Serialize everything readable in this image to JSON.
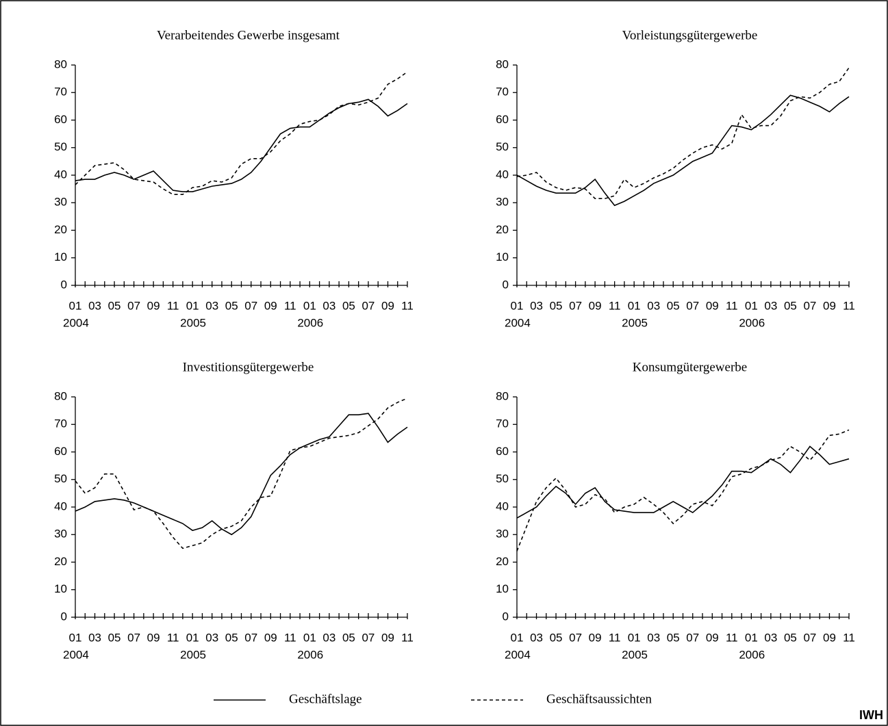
{
  "chart_data": [
    {
      "type": "line",
      "title": "Verarbeitendes Gewerbe insgesamt",
      "categories": [
        "01",
        null,
        "03",
        null,
        "05",
        null,
        "07",
        null,
        "09",
        null,
        "11",
        null,
        "01",
        null,
        "03",
        null,
        "05",
        null,
        "07",
        null,
        "09",
        null,
        "11",
        null,
        "01",
        null,
        "03",
        null,
        "05",
        null,
        "07",
        null,
        "09",
        null,
        "11"
      ],
      "years": [
        "2004",
        null,
        null,
        null,
        null,
        null,
        null,
        null,
        null,
        null,
        null,
        null,
        "2005",
        null,
        null,
        null,
        null,
        null,
        null,
        null,
        null,
        null,
        null,
        null,
        "2006",
        null,
        null,
        null,
        null,
        null,
        null,
        null,
        null,
        null,
        null
      ],
      "ylim": [
        0,
        80
      ],
      "yticks": [
        0,
        10,
        20,
        30,
        40,
        50,
        60,
        70,
        80
      ],
      "series": [
        {
          "name": "Geschäftslage",
          "color": "#000000",
          "style": "solid",
          "values": [
            38,
            38.5,
            38.5,
            40,
            41,
            40,
            38.5,
            40,
            41.5,
            38,
            34.5,
            34,
            34,
            35,
            36,
            36.5,
            37,
            38.5,
            41,
            45,
            50,
            55,
            57,
            57.5,
            57.5,
            60,
            62.5,
            64.5,
            66,
            66.5,
            67.5,
            65,
            61.5,
            63.5,
            66
          ]
        },
        {
          "name": "Geschäftsaussichten",
          "color": "#000000",
          "style": "dashed",
          "values": [
            36.5,
            40,
            43.5,
            44,
            44.5,
            42,
            38.5,
            38,
            37.5,
            35,
            33,
            33,
            35.5,
            36,
            38,
            37.5,
            39,
            44,
            46,
            46,
            48.5,
            52.5,
            55,
            58.5,
            59.5,
            60,
            62,
            65,
            66,
            65.5,
            66.5,
            68,
            73,
            75,
            77.5
          ]
        }
      ]
    },
    {
      "type": "line",
      "title": "Vorleistungsgütergewerbe",
      "categories": [
        "01",
        null,
        "03",
        null,
        "05",
        null,
        "07",
        null,
        "09",
        null,
        "11",
        null,
        "01",
        null,
        "03",
        null,
        "05",
        null,
        "07",
        null,
        "09",
        null,
        "11",
        null,
        "01",
        null,
        "03",
        null,
        "05",
        null,
        "07",
        null,
        "09",
        null,
        "11"
      ],
      "years": [
        "2004",
        null,
        null,
        null,
        null,
        null,
        null,
        null,
        null,
        null,
        null,
        null,
        "2005",
        null,
        null,
        null,
        null,
        null,
        null,
        null,
        null,
        null,
        null,
        null,
        "2006",
        null,
        null,
        null,
        null,
        null,
        null,
        null,
        null,
        null,
        null
      ],
      "ylim": [
        0,
        80
      ],
      "yticks": [
        0,
        10,
        20,
        30,
        40,
        50,
        60,
        70,
        80
      ],
      "series": [
        {
          "name": "Geschäftslage",
          "color": "#000000",
          "style": "solid",
          "values": [
            40,
            38,
            36,
            34.5,
            33.5,
            33.5,
            33.5,
            35.5,
            38.5,
            33.5,
            29,
            30.5,
            32.5,
            34.5,
            37,
            38.5,
            40,
            42.5,
            45,
            46.5,
            48,
            53,
            58,
            57.5,
            56.5,
            59,
            62,
            65.5,
            69,
            68,
            66.5,
            65,
            63,
            66,
            68.5
          ]
        },
        {
          "name": "Geschäftsaussichten",
          "color": "#000000",
          "style": "dashed",
          "values": [
            39.5,
            40,
            41,
            37.5,
            35.5,
            34.5,
            35.5,
            35,
            31.5,
            31.5,
            32.5,
            38.5,
            35.5,
            37,
            39,
            40.5,
            42.5,
            45.5,
            48,
            50,
            51,
            49.5,
            51.5,
            62,
            57,
            58,
            58,
            61.5,
            67,
            68.5,
            68,
            70,
            73,
            74,
            79
          ]
        }
      ]
    },
    {
      "type": "line",
      "title": "Investitionsgütergewerbe",
      "categories": [
        "01",
        null,
        "03",
        null,
        "05",
        null,
        "07",
        null,
        "09",
        null,
        "11",
        null,
        "01",
        null,
        "03",
        null,
        "05",
        null,
        "07",
        null,
        "09",
        null,
        "11",
        null,
        "01",
        null,
        "03",
        null,
        "05",
        null,
        "07",
        null,
        "09",
        null,
        "11"
      ],
      "years": [
        "2004",
        null,
        null,
        null,
        null,
        null,
        null,
        null,
        null,
        null,
        null,
        null,
        "2005",
        null,
        null,
        null,
        null,
        null,
        null,
        null,
        null,
        null,
        null,
        null,
        "2006",
        null,
        null,
        null,
        null,
        null,
        null,
        null,
        null,
        null,
        null
      ],
      "ylim": [
        0,
        80
      ],
      "yticks": [
        0,
        10,
        20,
        30,
        40,
        50,
        60,
        70,
        80
      ],
      "series": [
        {
          "name": "Geschäftslage",
          "color": "#000000",
          "style": "solid",
          "values": [
            38.5,
            40,
            42,
            42.5,
            43,
            42.5,
            41.5,
            40,
            38.5,
            37,
            35.5,
            34,
            31.5,
            32.5,
            35,
            32,
            30,
            32.5,
            36.5,
            44,
            51.5,
            55,
            59,
            61.5,
            63,
            64.5,
            65.5,
            69.5,
            73.5,
            73.5,
            74,
            69,
            63.5,
            66.5,
            69
          ]
        },
        {
          "name": "Geschäftsaussichten",
          "color": "#000000",
          "style": "dashed",
          "values": [
            49.5,
            45,
            47,
            52,
            52,
            45.5,
            39,
            40,
            38.5,
            34,
            29,
            25,
            26,
            27,
            30,
            32,
            33,
            35,
            40,
            43.5,
            44,
            52,
            60.5,
            61.5,
            62,
            63.5,
            65,
            65.5,
            66,
            67,
            69.5,
            72,
            76,
            78,
            79.5
          ]
        }
      ]
    },
    {
      "type": "line",
      "title": "Konsumgütergewerbe",
      "categories": [
        "01",
        null,
        "03",
        null,
        "05",
        null,
        "07",
        null,
        "09",
        null,
        "11",
        null,
        "01",
        null,
        "03",
        null,
        "05",
        null,
        "07",
        null,
        "09",
        null,
        "11",
        null,
        "01",
        null,
        "03",
        null,
        "05",
        null,
        "07",
        null,
        "09",
        null,
        "11"
      ],
      "years": [
        "2004",
        null,
        null,
        null,
        null,
        null,
        null,
        null,
        null,
        null,
        null,
        null,
        "2005",
        null,
        null,
        null,
        null,
        null,
        null,
        null,
        null,
        null,
        null,
        null,
        "2006",
        null,
        null,
        null,
        null,
        null,
        null,
        null,
        null,
        null,
        null
      ],
      "ylim": [
        0,
        80
      ],
      "yticks": [
        0,
        10,
        20,
        30,
        40,
        50,
        60,
        70,
        80
      ],
      "series": [
        {
          "name": "Geschäftslage",
          "color": "#000000",
          "style": "solid",
          "values": [
            36,
            38,
            40,
            44,
            47.5,
            45,
            41,
            45,
            47,
            42,
            39,
            38.5,
            38,
            38,
            38,
            40,
            42,
            40,
            38,
            41,
            44,
            48,
            53,
            53,
            52.5,
            55,
            57.5,
            55.5,
            52.5,
            57,
            62,
            59,
            55.5,
            56.5,
            57.5
          ]
        },
        {
          "name": "Geschäftsaussichten",
          "color": "#000000",
          "style": "dashed",
          "values": [
            24,
            33,
            42,
            47,
            50.5,
            46,
            40,
            41,
            44.5,
            43,
            38,
            40,
            41,
            43.5,
            41,
            38,
            34,
            37,
            41,
            42,
            40.5,
            45,
            51,
            52,
            54,
            55,
            57,
            58,
            62,
            60,
            57,
            61,
            66,
            66.5,
            68
          ]
        }
      ]
    }
  ],
  "source": "IWH"
}
